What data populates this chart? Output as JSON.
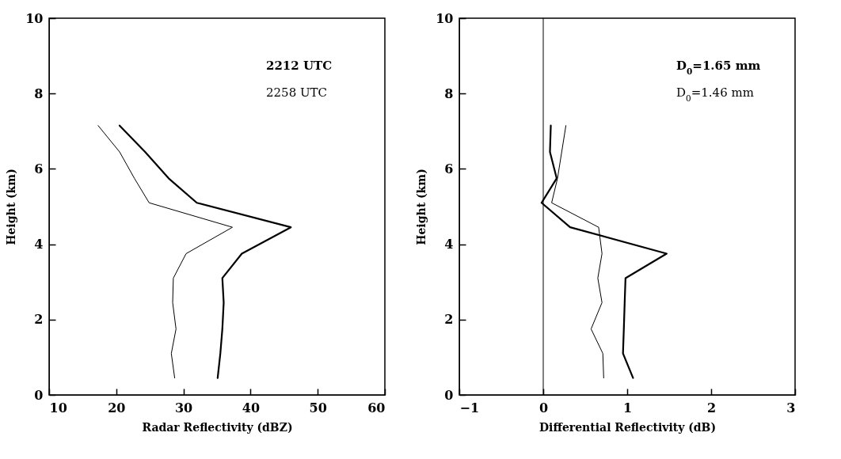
{
  "chart_data": [
    {
      "type": "line",
      "xlabel": "Radar Reflectivity (dBZ)",
      "ylabel": "Height (km)",
      "xlim": [
        10,
        60
      ],
      "xticks": [
        10,
        20,
        30,
        40,
        50,
        60
      ],
      "ylim": [
        0,
        10
      ],
      "yticks": [
        0,
        2,
        4,
        6,
        8,
        10
      ],
      "grid": false,
      "legend": "top right",
      "marker": "none",
      "line_style": "solid",
      "series": [
        {
          "name": "2212 UTC",
          "color": "#000000",
          "x": [
            35.1,
            35.5,
            35.8,
            36.0,
            35.8,
            38.7,
            46.0,
            32.0,
            27.8,
            24.3,
            20.5
          ],
          "values": [
            0.45,
            1.1,
            1.75,
            2.45,
            3.1,
            3.75,
            4.45,
            5.1,
            5.75,
            6.45,
            7.15
          ]
        },
        {
          "name": "2258 UTC",
          "color": "#000000",
          "x": [
            28.7,
            28.2,
            28.9,
            28.4,
            28.5,
            30.4,
            37.3,
            24.9,
            22.7,
            20.5,
            17.3
          ],
          "values": [
            0.45,
            1.1,
            1.75,
            2.45,
            3.1,
            3.75,
            4.45,
            5.1,
            5.75,
            6.45,
            7.15
          ]
        }
      ]
    },
    {
      "type": "line",
      "xlabel": "Differential Reflectivity (dB)",
      "ylabel": "Height (km)",
      "xlim": [
        -1,
        3
      ],
      "xticks": [
        {
          "value": -1,
          "label": "−1"
        },
        0,
        1,
        2,
        3
      ],
      "ylim": [
        0,
        10
      ],
      "yticks": [
        0,
        2,
        4,
        6,
        8,
        10
      ],
      "grid": false,
      "legend": "top right",
      "marker": "none",
      "line_style": "solid",
      "ref_lines": [
        {
          "axis": "x",
          "value": 0,
          "color": "#000000"
        }
      ],
      "series": [
        {
          "name": "D$_{0}$=1.65 mm",
          "color": "#000000",
          "x": [
            1.07,
            0.95,
            0.96,
            0.97,
            0.98,
            1.47,
            0.32,
            -0.02,
            0.16,
            0.08,
            0.09
          ],
          "values": [
            0.45,
            1.1,
            1.75,
            2.45,
            3.1,
            3.75,
            4.45,
            5.1,
            5.75,
            6.45,
            7.15
          ]
        },
        {
          "name": "D$_{0}$=1.46 mm",
          "color": "#000000",
          "x": [
            0.72,
            0.71,
            0.57,
            0.7,
            0.65,
            0.7,
            0.66,
            0.1,
            0.17,
            0.22,
            0.27
          ],
          "values": [
            0.45,
            1.1,
            1.75,
            2.45,
            3.1,
            3.75,
            4.45,
            5.1,
            5.75,
            6.45,
            7.15
          ]
        }
      ]
    }
  ]
}
